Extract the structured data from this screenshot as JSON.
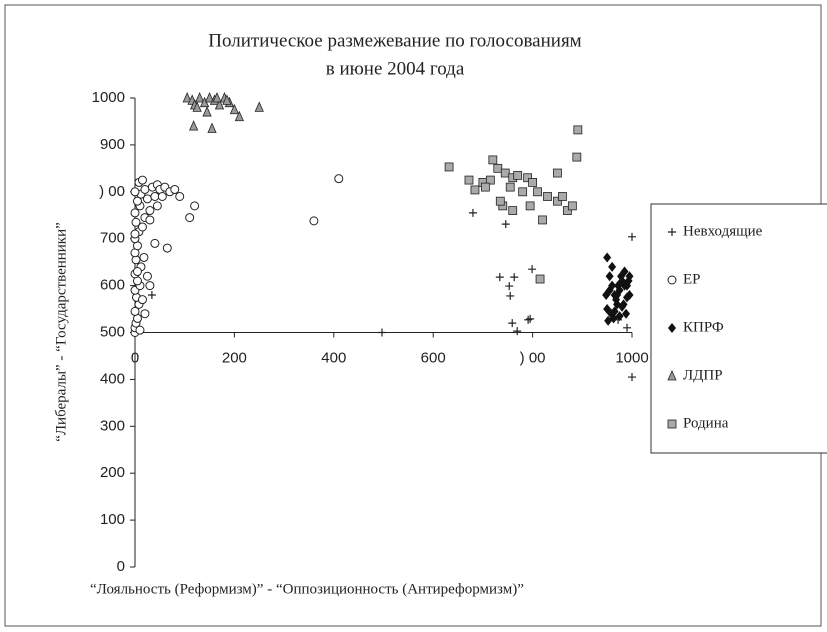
{
  "chart_data": {
    "type": "scatter",
    "title": [
      "Политическое размежевание по голосованиям",
      "в июне 2004 года"
    ],
    "xlabel": "“Лояльность (Реформизм)” - “Оппозиционность (Антиреформизм)”",
    "ylabel": "“Либералы” - “Государственники”",
    "xlim": [
      0,
      1000
    ],
    "ylim": [
      0,
      1000
    ],
    "x_axis_crosses": 500,
    "xticks": [
      0,
      200,
      400,
      600,
      {
        "value": 800,
        "label": ") 00"
      },
      1000
    ],
    "yticks": [
      0,
      100,
      200,
      300,
      400,
      500,
      600,
      700,
      {
        "value": 800,
        "label": ") 00"
      },
      900,
      1000
    ],
    "legend": "right",
    "series": [
      {
        "name": "Невходящие",
        "marker": "plus",
        "color": "#222222",
        "x": [
          680,
          746,
          734,
          763,
          753,
          755,
          759,
          769,
          791,
          799,
          795,
          497,
          1000,
          1000,
          990,
          972,
          34
        ],
        "y": [
          755,
          731,
          618,
          618,
          599,
          578,
          520,
          503,
          527,
          635,
          529,
          500,
          704,
          405,
          510,
          527,
          580
        ]
      },
      {
        "name": "ЕР",
        "marker": "circle",
        "color": "#ffffff",
        "x": [
          0,
          0,
          2,
          5,
          0,
          8,
          3,
          0,
          10,
          5,
          0,
          12,
          2,
          0,
          5,
          0,
          8,
          15,
          2,
          20,
          0,
          30,
          10,
          5,
          25,
          40,
          12,
          0,
          20,
          35,
          45,
          8,
          15,
          50,
          60,
          70,
          80,
          90,
          110,
          120,
          65,
          40,
          25,
          15,
          20,
          10,
          30,
          5,
          45,
          30,
          55,
          0,
          18,
          360,
          410
        ],
        "y": [
          500,
          510,
          520,
          530,
          545,
          560,
          575,
          590,
          600,
          610,
          625,
          640,
          655,
          670,
          685,
          700,
          715,
          725,
          735,
          745,
          755,
          760,
          770,
          780,
          785,
          790,
          795,
          800,
          805,
          810,
          815,
          820,
          825,
          805,
          810,
          800,
          805,
          790,
          745,
          770,
          680,
          690,
          620,
          570,
          540,
          505,
          600,
          630,
          770,
          740,
          790,
          710,
          660,
          738,
          828
        ]
      },
      {
        "name": "КПРФ",
        "marker": "diamond",
        "color": "#111111",
        "x": [
          950,
          955,
          960,
          965,
          970,
          975,
          980,
          985,
          990,
          995,
          950,
          958,
          963,
          968,
          972,
          978,
          983,
          988,
          993,
          952,
          960,
          970,
          980,
          990,
          955,
          965,
          975,
          985,
          995,
          948
        ],
        "y": [
          660,
          620,
          600,
          580,
          560,
          590,
          610,
          630,
          600,
          580,
          550,
          540,
          530,
          570,
          600,
          620,
          560,
          540,
          610,
          525,
          640,
          580,
          555,
          575,
          590,
          545,
          535,
          600,
          620,
          580
        ]
      },
      {
        "name": "ЛДПР",
        "marker": "triangle",
        "color": "#999999",
        "x": [
          105,
          115,
          120,
          130,
          140,
          150,
          160,
          170,
          180,
          190,
          200,
          210,
          125,
          145,
          165,
          185,
          250,
          118,
          155
        ],
        "y": [
          1000,
          995,
          985,
          1000,
          990,
          1000,
          995,
          985,
          1000,
          990,
          975,
          960,
          980,
          970,
          1000,
          995,
          980,
          940,
          935
        ]
      },
      {
        "name": "Родина",
        "marker": "square",
        "color": "#aaaaaa",
        "x": [
          891,
          632,
          889,
          672,
          684,
          720,
          700,
          730,
          745,
          760,
          770,
          790,
          810,
          830,
          850,
          870,
          880,
          740,
          760,
          780,
          800,
          820,
          850,
          715,
          735,
          815,
          860,
          705,
          755,
          795
        ],
        "y": [
          932,
          853,
          874,
          825,
          804,
          868,
          820,
          850,
          840,
          830,
          835,
          830,
          800,
          790,
          780,
          760,
          770,
          770,
          760,
          800,
          820,
          740,
          840,
          825,
          780,
          614,
          790,
          810,
          810,
          770
        ]
      }
    ]
  }
}
